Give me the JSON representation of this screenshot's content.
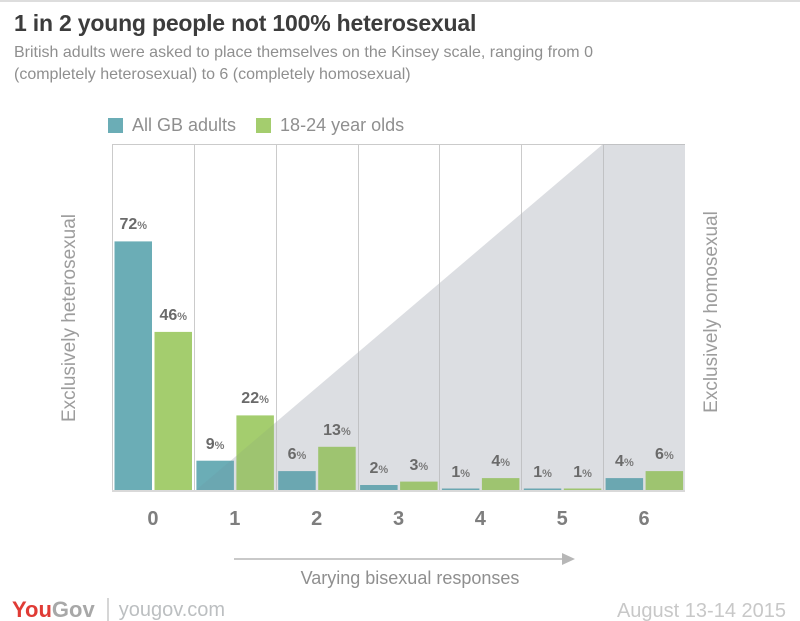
{
  "page": {
    "title": "1 in 2 young people not 100% heterosexual",
    "subtitle": "British adults were asked to place themselves on the Kinsey scale, ranging from 0 (completely heterosexual) to 6 (completely homosexual)"
  },
  "chart_data": {
    "type": "bar",
    "categories": [
      "0",
      "1",
      "2",
      "3",
      "4",
      "5",
      "6"
    ],
    "series": [
      {
        "name": "All GB adults",
        "color": "#6badb6",
        "values": [
          72,
          9,
          6,
          2,
          1,
          1,
          4
        ]
      },
      {
        "name": "18-24 year olds",
        "color": "#a4cd6e",
        "values": [
          46,
          22,
          13,
          3,
          4,
          1,
          6
        ]
      }
    ],
    "value_suffix": "%",
    "ylim": [
      0,
      100
    ],
    "legend_position": "top-left",
    "grid": "vertical column dividers only",
    "left_axis_label": "Exclusively heterosexual",
    "right_axis_label": "Exclusively homosexual",
    "x_annotation": "Varying bisexual responses",
    "background_shape": "gray triangle rising diagonally from bottom of category 1 to top of category 6; category 6 column fully gray",
    "colors": {
      "teal": "#6badb6",
      "green": "#a4cd6e",
      "gray_bg": "#e9eaec",
      "divider": "#cbcbcb"
    }
  },
  "footer": {
    "logo_you": "You",
    "logo_gov": "Gov",
    "site": "yougov.com",
    "date": "August 13-14 2015"
  }
}
